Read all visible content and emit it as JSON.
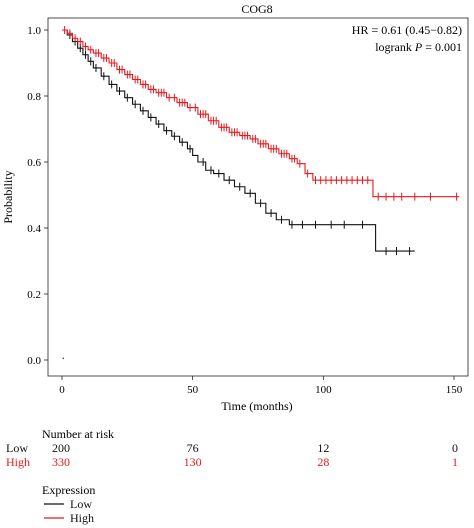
{
  "chart_data": {
    "type": "line",
    "subtype": "kaplan-meier",
    "title": "COG8",
    "xlabel": "Time (months)",
    "ylabel": "Probability",
    "xlim": [
      0,
      155
    ],
    "ylim": [
      0,
      1.02
    ],
    "x_ticks": [
      0,
      50,
      100,
      150
    ],
    "y_ticks": [
      0.0,
      0.2,
      0.4,
      0.6,
      0.8,
      1.0
    ],
    "grid": false,
    "annotation": {
      "hr_line": "HR = 0.61 (0.45−0.82)",
      "logrank_prefix": "logrank ",
      "logrank_p": "P",
      "logrank_suffix": " = 0.001"
    },
    "series": [
      {
        "name": "Low",
        "color": "#111111",
        "points": [
          [
            0,
            1.0
          ],
          [
            2,
            0.985
          ],
          [
            4,
            0.965
          ],
          [
            6,
            0.945
          ],
          [
            8,
            0.925
          ],
          [
            10,
            0.905
          ],
          [
            12,
            0.885
          ],
          [
            15,
            0.86
          ],
          [
            18,
            0.835
          ],
          [
            21,
            0.815
          ],
          [
            24,
            0.795
          ],
          [
            27,
            0.775
          ],
          [
            30,
            0.755
          ],
          [
            33,
            0.735
          ],
          [
            36,
            0.715
          ],
          [
            39,
            0.695
          ],
          [
            42,
            0.678
          ],
          [
            45,
            0.66
          ],
          [
            48,
            0.64
          ],
          [
            50,
            0.62
          ],
          [
            52,
            0.6
          ],
          [
            55,
            0.575
          ],
          [
            58,
            0.565
          ],
          [
            62,
            0.545
          ],
          [
            66,
            0.525
          ],
          [
            70,
            0.505
          ],
          [
            74,
            0.475
          ],
          [
            78,
            0.445
          ],
          [
            82,
            0.425
          ],
          [
            87,
            0.41
          ],
          [
            95,
            0.41
          ],
          [
            108,
            0.41
          ],
          [
            120,
            0.41
          ],
          [
            120,
            0.33
          ],
          [
            135,
            0.33
          ]
        ],
        "censor_x": [
          3,
          5,
          7,
          9,
          11,
          13,
          16,
          19,
          22,
          25,
          28,
          31,
          34,
          37,
          40,
          43,
          46,
          49,
          54,
          57,
          60,
          64,
          68,
          72,
          76,
          80,
          84,
          88,
          92,
          97,
          103,
          108,
          115,
          124,
          128,
          133
        ]
      },
      {
        "name": "High",
        "color": "#e8191c",
        "points": [
          [
            0,
            1.0
          ],
          [
            2,
            0.99
          ],
          [
            4,
            0.975
          ],
          [
            6,
            0.965
          ],
          [
            8,
            0.95
          ],
          [
            10,
            0.94
          ],
          [
            12,
            0.93
          ],
          [
            15,
            0.915
          ],
          [
            18,
            0.9
          ],
          [
            21,
            0.88
          ],
          [
            24,
            0.865
          ],
          [
            27,
            0.85
          ],
          [
            30,
            0.835
          ],
          [
            33,
            0.82
          ],
          [
            36,
            0.81
          ],
          [
            40,
            0.795
          ],
          [
            44,
            0.78
          ],
          [
            48,
            0.765
          ],
          [
            52,
            0.745
          ],
          [
            56,
            0.725
          ],
          [
            60,
            0.705
          ],
          [
            64,
            0.69
          ],
          [
            68,
            0.68
          ],
          [
            72,
            0.67
          ],
          [
            75,
            0.655
          ],
          [
            79,
            0.64
          ],
          [
            83,
            0.625
          ],
          [
            87,
            0.61
          ],
          [
            90,
            0.595
          ],
          [
            93,
            0.565
          ],
          [
            96,
            0.545
          ],
          [
            110,
            0.545
          ],
          [
            119,
            0.545
          ],
          [
            119,
            0.495
          ],
          [
            152,
            0.495
          ]
        ],
        "censor_x": [
          1,
          3,
          5,
          7,
          9,
          11,
          13,
          14,
          16,
          17,
          19,
          20,
          22,
          23,
          25,
          26,
          28,
          29,
          31,
          32,
          34,
          35,
          37,
          38,
          39,
          41,
          43,
          45,
          46,
          47,
          49,
          51,
          53,
          54,
          55,
          57,
          58,
          59,
          61,
          62,
          63,
          65,
          66,
          67,
          69,
          70,
          71,
          73,
          74,
          76,
          77,
          78,
          80,
          81,
          82,
          84,
          85,
          86,
          88,
          89,
          91,
          94,
          97,
          99,
          101,
          103,
          105,
          107,
          109,
          111,
          113,
          115,
          117,
          121,
          124,
          127,
          130,
          135,
          141,
          151
        ]
      }
    ]
  },
  "risk_table": {
    "header": "Number at risk",
    "rows": [
      {
        "label": "Low",
        "values": [
          "200",
          "76",
          "12",
          "0"
        ],
        "color": "#111111"
      },
      {
        "label": "High",
        "values": [
          "330",
          "130",
          "28",
          "1"
        ],
        "color": "#e8191c"
      }
    ]
  },
  "legend": {
    "title": "Expression",
    "items": [
      {
        "label": "Low",
        "color": "#111111"
      },
      {
        "label": "High",
        "color": "#e8191c"
      }
    ]
  }
}
